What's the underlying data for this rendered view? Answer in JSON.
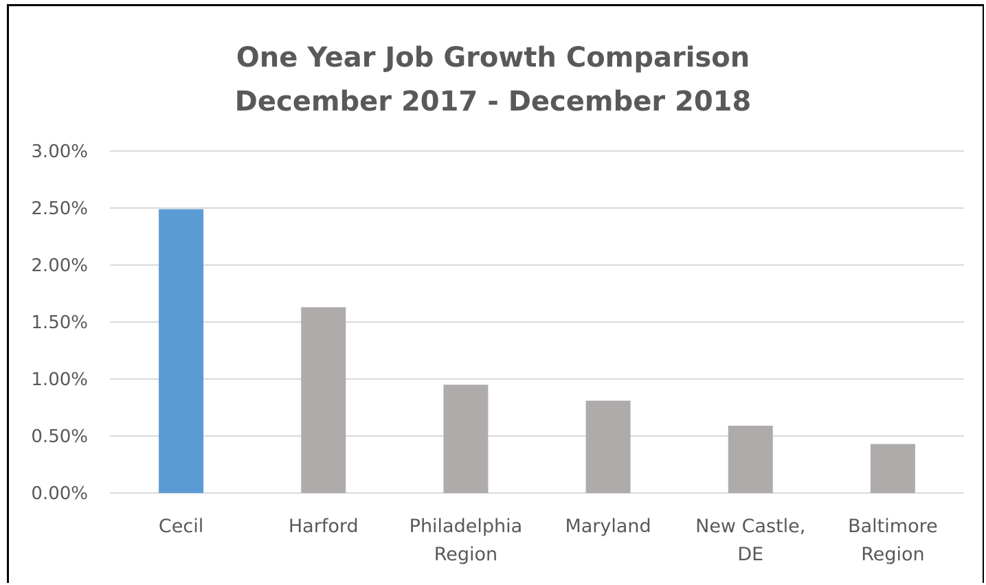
{
  "chart_data": {
    "type": "bar",
    "title": [
      "One Year Job Growth Comparison",
      "December 2017 - December 2018"
    ],
    "categories": [
      [
        "Cecil"
      ],
      [
        "Harford"
      ],
      [
        "Philadelphia",
        "Region"
      ],
      [
        "Maryland"
      ],
      [
        "New Castle,",
        "DE"
      ],
      [
        "Baltimore",
        "Region"
      ]
    ],
    "values": [
      2.49,
      1.63,
      0.95,
      0.81,
      0.59,
      0.43
    ],
    "highlight_index": 0,
    "colors": {
      "highlight": "#5b9bd5",
      "default": "#afabab",
      "grid": "#d9d9d9",
      "text": "#595959"
    },
    "ylim": [
      0,
      3
    ],
    "yticks": [
      "0.00%",
      "0.50%",
      "1.00%",
      "1.50%",
      "2.00%",
      "2.50%",
      "3.00%"
    ],
    "grid": true
  }
}
